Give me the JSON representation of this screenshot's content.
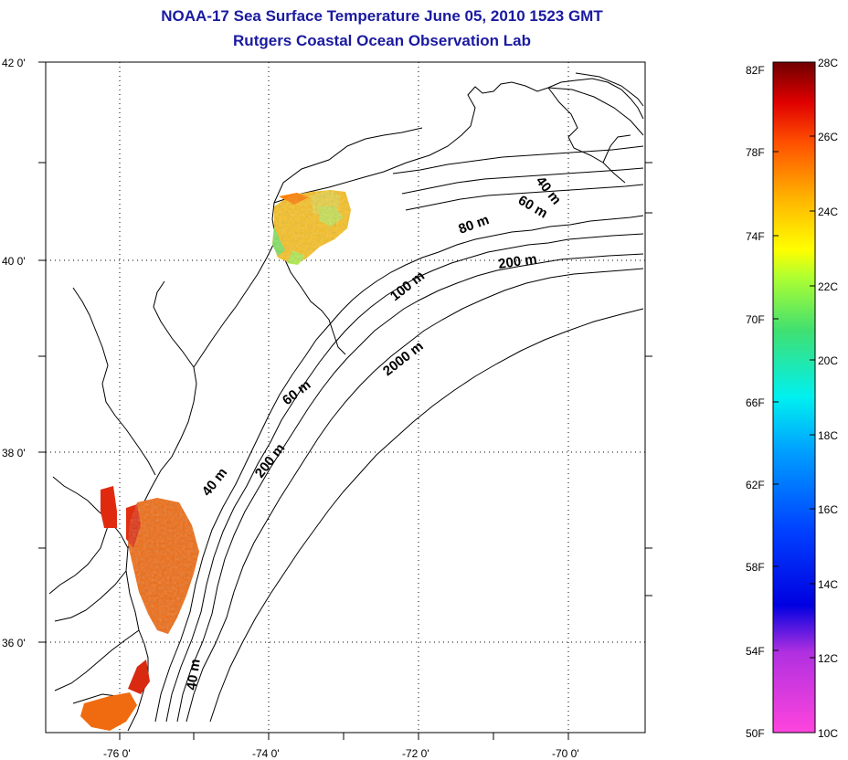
{
  "title": {
    "line1": "NOAA-17 Sea Surface Temperature June 05, 2010 1523 GMT",
    "line2": "Rutgers Coastal Ocean Observation Lab"
  },
  "axes": {
    "lat_labels": [
      "42 0'",
      "40 0'",
      "38 0'",
      "36 0'"
    ],
    "lon_labels": [
      "-76 0'",
      "-74 0'",
      "-72 0'",
      "-70 0'"
    ]
  },
  "depth_labels": [
    "40 m",
    "60 m",
    "80 m",
    "200 m",
    "100 m",
    "2000 m",
    "60 m",
    "40 m",
    "200 m",
    "40 m"
  ],
  "colorbar": {
    "fahrenheit": [
      "82F",
      "78F",
      "74F",
      "70F",
      "66F",
      "62F",
      "58F",
      "54F",
      "50F"
    ],
    "celsius": [
      "28C",
      "26C",
      "24C",
      "22C",
      "20C",
      "18C",
      "16C",
      "14C",
      "12C",
      "10C"
    ],
    "colors": [
      "#7a0000",
      "#d00000",
      "#ff3000",
      "#ff7a00",
      "#ffc000",
      "#ffff00",
      "#a0ff40",
      "#30e070",
      "#00f0e0",
      "#00a0ff",
      "#0050ff",
      "#0000e0",
      "#7030c0",
      "#c030e0",
      "#ff40e0"
    ]
  },
  "colors": {
    "title": "#1a1aa0",
    "warm_sst": "#f06a10",
    "cool_sst": "#f8c020",
    "coast": "#000000"
  }
}
